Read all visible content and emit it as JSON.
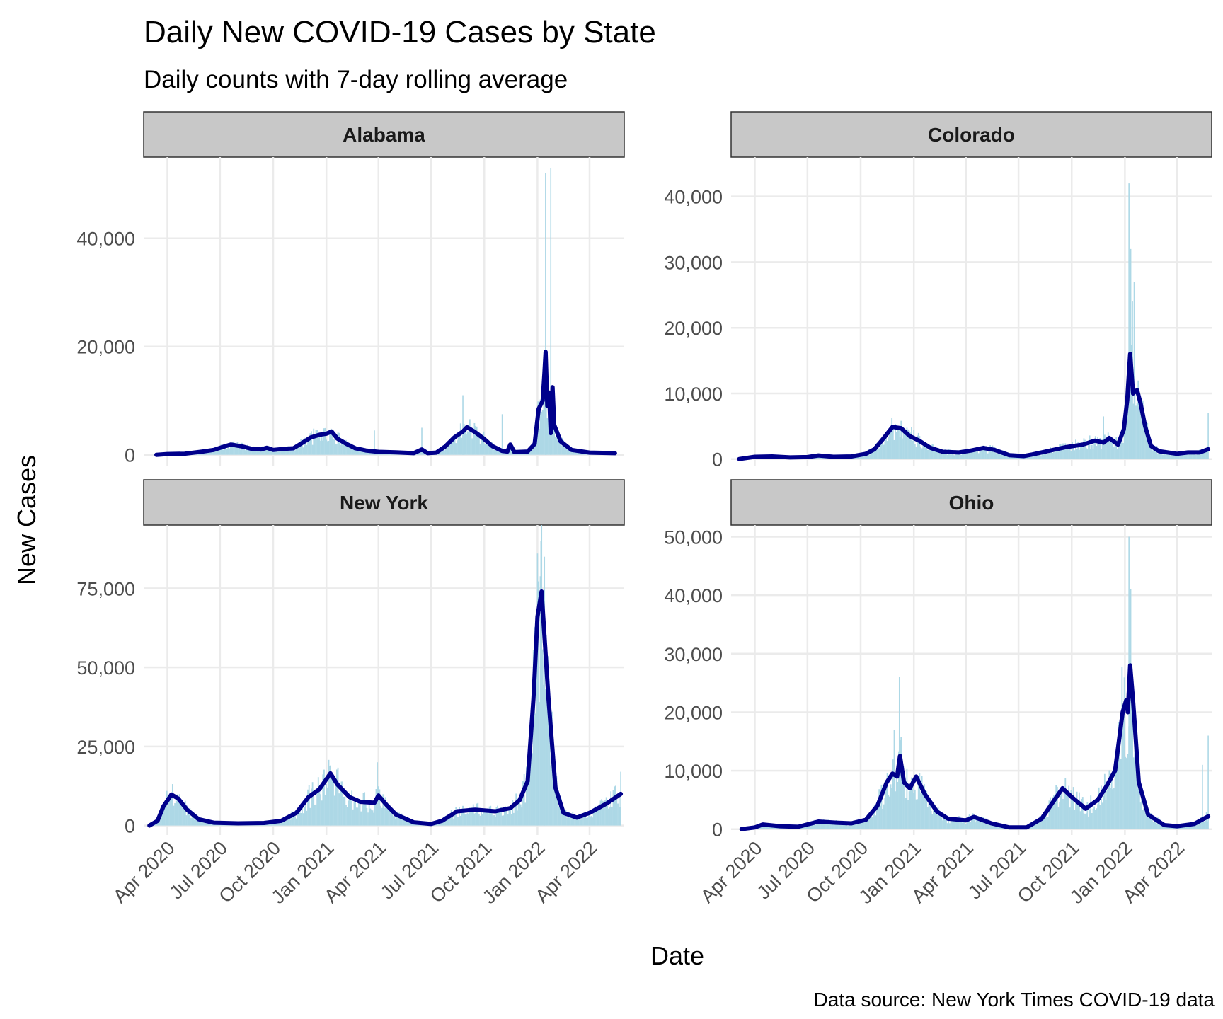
{
  "chart_data": {
    "type": "bar",
    "title": "Daily New COVID-19 Cases by State",
    "subtitle": "Daily counts with 7-day rolling average",
    "xlabel": "Date",
    "ylabel": "New Cases",
    "caption": "Data source: New York Times COVID-19 data",
    "x_ticks": [
      "Apr 2020",
      "Jul 2020",
      "Oct 2020",
      "Jan 2021",
      "Apr 2021",
      "Jul 2021",
      "Oct 2021",
      "Jan 2022",
      "Apr 2022"
    ],
    "x_tick_dates": [
      "2020-04-01",
      "2020-07-01",
      "2020-10-01",
      "2021-01-01",
      "2021-04-01",
      "2021-07-01",
      "2021-10-01",
      "2022-01-01",
      "2022-04-01"
    ],
    "xlim": [
      "2020-02-20",
      "2022-05-31"
    ],
    "grid": true,
    "colors": {
      "daily_bars": "#add8e6",
      "rolling_average": "#00008b",
      "strip_fill": "#c8c8c8",
      "grid": "#ebebeb"
    },
    "series_legend": "none",
    "panels": [
      {
        "state": "Alabama",
        "ylim": [
          -2000,
          55000
        ],
        "y_ticks": [
          0,
          20000,
          40000
        ],
        "y_tick_labels": [
          "0",
          "20,000",
          "40,000"
        ],
        "rolling_avg": [
          [
            "2020-03-13",
            0
          ],
          [
            "2020-04-01",
            150
          ],
          [
            "2020-05-01",
            200
          ],
          [
            "2020-06-01",
            600
          ],
          [
            "2020-06-20",
            900
          ],
          [
            "2020-07-10",
            1600
          ],
          [
            "2020-07-20",
            1900
          ],
          [
            "2020-08-10",
            1500
          ],
          [
            "2020-08-25",
            1100
          ],
          [
            "2020-09-10",
            1000
          ],
          [
            "2020-09-20",
            1300
          ],
          [
            "2020-10-01",
            900
          ],
          [
            "2020-10-20",
            1100
          ],
          [
            "2020-11-05",
            1200
          ],
          [
            "2020-11-20",
            2200
          ],
          [
            "2020-12-05",
            3200
          ],
          [
            "2020-12-20",
            3700
          ],
          [
            "2021-01-01",
            3900
          ],
          [
            "2021-01-10",
            4300
          ],
          [
            "2021-01-20",
            3000
          ],
          [
            "2021-02-05",
            2000
          ],
          [
            "2021-02-20",
            1200
          ],
          [
            "2021-03-10",
            800
          ],
          [
            "2021-04-01",
            550
          ],
          [
            "2021-05-01",
            450
          ],
          [
            "2021-06-01",
            300
          ],
          [
            "2021-06-15",
            1000
          ],
          [
            "2021-06-25",
            300
          ],
          [
            "2021-07-10",
            400
          ],
          [
            "2021-07-25",
            1500
          ],
          [
            "2021-08-10",
            3200
          ],
          [
            "2021-08-25",
            4300
          ],
          [
            "2021-09-01",
            5100
          ],
          [
            "2021-09-15",
            4200
          ],
          [
            "2021-09-30",
            3000
          ],
          [
            "2021-10-15",
            1600
          ],
          [
            "2021-11-01",
            700
          ],
          [
            "2021-11-10",
            600
          ],
          [
            "2021-11-15",
            1900
          ],
          [
            "2021-11-22",
            500
          ],
          [
            "2021-12-15",
            600
          ],
          [
            "2021-12-27",
            2000
          ],
          [
            "2022-01-03",
            8500
          ],
          [
            "2022-01-10",
            10000
          ],
          [
            "2022-01-13",
            15000
          ],
          [
            "2022-01-15",
            19000
          ],
          [
            "2022-01-18",
            9000
          ],
          [
            "2022-01-21",
            11500
          ],
          [
            "2022-01-24",
            4000
          ],
          [
            "2022-01-27",
            12500
          ],
          [
            "2022-01-30",
            5500
          ],
          [
            "2022-02-10",
            2500
          ],
          [
            "2022-03-01",
            900
          ],
          [
            "2022-04-01",
            400
          ],
          [
            "2022-05-15",
            300
          ]
        ],
        "daily_peaks": [
          [
            "2022-01-15",
            52000
          ],
          [
            "2022-01-24",
            53000
          ],
          [
            "2021-08-25",
            11000
          ],
          [
            "2021-11-01",
            7500
          ],
          [
            "2021-06-15",
            5000
          ],
          [
            "2021-03-25",
            4500
          ]
        ]
      },
      {
        "state": "Colorado",
        "ylim": [
          -1000,
          46000
        ],
        "y_ticks": [
          0,
          10000,
          20000,
          30000,
          40000
        ],
        "y_tick_labels": [
          "0",
          "10,000",
          "20,000",
          "30,000",
          "40,000"
        ],
        "rolling_avg": [
          [
            "2020-03-05",
            0
          ],
          [
            "2020-04-01",
            350
          ],
          [
            "2020-05-01",
            400
          ],
          [
            "2020-06-01",
            250
          ],
          [
            "2020-07-01",
            300
          ],
          [
            "2020-07-20",
            550
          ],
          [
            "2020-08-15",
            350
          ],
          [
            "2020-09-15",
            400
          ],
          [
            "2020-10-10",
            800
          ],
          [
            "2020-10-25",
            1500
          ],
          [
            "2020-11-10",
            3200
          ],
          [
            "2020-11-25",
            4900
          ],
          [
            "2020-12-10",
            4700
          ],
          [
            "2020-12-25",
            3500
          ],
          [
            "2021-01-10",
            2800
          ],
          [
            "2021-01-30",
            1700
          ],
          [
            "2021-02-20",
            1100
          ],
          [
            "2021-03-20",
            1000
          ],
          [
            "2021-04-10",
            1300
          ],
          [
            "2021-05-01",
            1700
          ],
          [
            "2021-05-20",
            1400
          ],
          [
            "2021-06-15",
            600
          ],
          [
            "2021-07-10",
            450
          ],
          [
            "2021-07-25",
            700
          ],
          [
            "2021-08-20",
            1200
          ],
          [
            "2021-09-20",
            1800
          ],
          [
            "2021-10-20",
            2200
          ],
          [
            "2021-11-10",
            2800
          ],
          [
            "2021-11-25",
            2500
          ],
          [
            "2021-12-05",
            3200
          ],
          [
            "2021-12-20",
            2200
          ],
          [
            "2021-12-30",
            4500
          ],
          [
            "2022-01-05",
            9000
          ],
          [
            "2022-01-10",
            16000
          ],
          [
            "2022-01-15",
            10000
          ],
          [
            "2022-01-22",
            10500
          ],
          [
            "2022-01-28",
            8500
          ],
          [
            "2022-02-05",
            5000
          ],
          [
            "2022-02-15",
            2000
          ],
          [
            "2022-03-01",
            1200
          ],
          [
            "2022-04-01",
            800
          ],
          [
            "2022-04-20",
            1000
          ],
          [
            "2022-05-10",
            1000
          ],
          [
            "2022-05-25",
            1500
          ]
        ],
        "daily_peaks": [
          [
            "2022-01-08",
            42000
          ],
          [
            "2022-01-11",
            32000
          ],
          [
            "2022-01-17",
            27000
          ],
          [
            "2022-01-14",
            24000
          ],
          [
            "2022-05-25",
            7000
          ],
          [
            "2021-11-25",
            6500
          ]
        ]
      },
      {
        "state": "New York",
        "ylim": [
          -3000,
          95000
        ],
        "y_ticks": [
          0,
          25000,
          50000,
          75000
        ],
        "y_tick_labels": [
          "0",
          "25,000",
          "50,000",
          "75,000"
        ],
        "rolling_avg": [
          [
            "2020-03-01",
            0
          ],
          [
            "2020-03-15",
            1500
          ],
          [
            "2020-03-25",
            6000
          ],
          [
            "2020-04-08",
            9800
          ],
          [
            "2020-04-20",
            8500
          ],
          [
            "2020-05-05",
            5000
          ],
          [
            "2020-05-25",
            2000
          ],
          [
            "2020-06-20",
            900
          ],
          [
            "2020-08-01",
            700
          ],
          [
            "2020-09-15",
            800
          ],
          [
            "2020-10-15",
            1500
          ],
          [
            "2020-11-10",
            4000
          ],
          [
            "2020-12-01",
            9000
          ],
          [
            "2020-12-20",
            11500
          ],
          [
            "2021-01-08",
            16500
          ],
          [
            "2021-01-20",
            13000
          ],
          [
            "2021-02-10",
            9000
          ],
          [
            "2021-03-01",
            7500
          ],
          [
            "2021-03-25",
            7200
          ],
          [
            "2021-04-01",
            9500
          ],
          [
            "2021-04-15",
            6500
          ],
          [
            "2021-05-01",
            3500
          ],
          [
            "2021-06-01",
            1000
          ],
          [
            "2021-07-01",
            500
          ],
          [
            "2021-07-20",
            1500
          ],
          [
            "2021-08-15",
            4500
          ],
          [
            "2021-09-15",
            5000
          ],
          [
            "2021-10-20",
            4500
          ],
          [
            "2021-11-15",
            5500
          ],
          [
            "2021-12-01",
            8000
          ],
          [
            "2021-12-15",
            14000
          ],
          [
            "2021-12-25",
            40000
          ],
          [
            "2022-01-01",
            66000
          ],
          [
            "2022-01-08",
            74000
          ],
          [
            "2022-01-20",
            40000
          ],
          [
            "2022-02-01",
            12000
          ],
          [
            "2022-02-15",
            4000
          ],
          [
            "2022-03-10",
            2500
          ],
          [
            "2022-04-01",
            4000
          ],
          [
            "2022-05-01",
            7000
          ],
          [
            "2022-05-25",
            10000
          ]
        ],
        "daily_peaks": [
          [
            "2022-01-07",
            90000
          ],
          [
            "2022-01-01",
            86000
          ],
          [
            "2022-01-13",
            85000
          ],
          [
            "2021-03-30",
            20000
          ],
          [
            "2022-05-25",
            17000
          ],
          [
            "2021-01-08",
            19000
          ]
        ]
      },
      {
        "state": "Ohio",
        "ylim": [
          -1000,
          52000
        ],
        "y_ticks": [
          0,
          10000,
          20000,
          30000,
          40000,
          50000
        ],
        "y_tick_labels": [
          "0",
          "10,000",
          "20,000",
          "30,000",
          "40,000",
          "50,000"
        ],
        "rolling_avg": [
          [
            "2020-03-09",
            0
          ],
          [
            "2020-04-01",
            300
          ],
          [
            "2020-04-15",
            800
          ],
          [
            "2020-05-15",
            500
          ],
          [
            "2020-06-15",
            400
          ],
          [
            "2020-07-20",
            1300
          ],
          [
            "2020-08-20",
            1100
          ],
          [
            "2020-09-15",
            1000
          ],
          [
            "2020-10-10",
            1600
          ],
          [
            "2020-10-30",
            4000
          ],
          [
            "2020-11-15",
            8000
          ],
          [
            "2020-11-25",
            9500
          ],
          [
            "2020-12-03",
            9000
          ],
          [
            "2020-12-08",
            12500
          ],
          [
            "2020-12-15",
            8000
          ],
          [
            "2020-12-25",
            7000
          ],
          [
            "2021-01-05",
            9000
          ],
          [
            "2021-01-20",
            6000
          ],
          [
            "2021-02-10",
            3000
          ],
          [
            "2021-03-01",
            1800
          ],
          [
            "2021-04-01",
            1500
          ],
          [
            "2021-04-15",
            2100
          ],
          [
            "2021-05-15",
            1000
          ],
          [
            "2021-06-15",
            300
          ],
          [
            "2021-07-15",
            300
          ],
          [
            "2021-08-10",
            1800
          ],
          [
            "2021-09-01",
            5000
          ],
          [
            "2021-09-15",
            7000
          ],
          [
            "2021-10-01",
            5500
          ],
          [
            "2021-10-25",
            3500
          ],
          [
            "2021-11-15",
            5000
          ],
          [
            "2021-12-01",
            7500
          ],
          [
            "2021-12-15",
            10000
          ],
          [
            "2021-12-28",
            20000
          ],
          [
            "2022-01-03",
            22000
          ],
          [
            "2022-01-06",
            20000
          ],
          [
            "2022-01-10",
            28000
          ],
          [
            "2022-01-15",
            22000
          ],
          [
            "2022-01-25",
            8000
          ],
          [
            "2022-02-10",
            2500
          ],
          [
            "2022-03-10",
            700
          ],
          [
            "2022-04-01",
            500
          ],
          [
            "2022-05-01",
            900
          ],
          [
            "2022-05-25",
            2200
          ]
        ],
        "daily_peaks": [
          [
            "2022-01-08",
            50000
          ],
          [
            "2022-01-11",
            41000
          ],
          [
            "2020-12-07",
            26000
          ],
          [
            "2020-11-28",
            17000
          ],
          [
            "2022-05-25",
            16000
          ],
          [
            "2022-05-15",
            11000
          ]
        ]
      }
    ]
  }
}
